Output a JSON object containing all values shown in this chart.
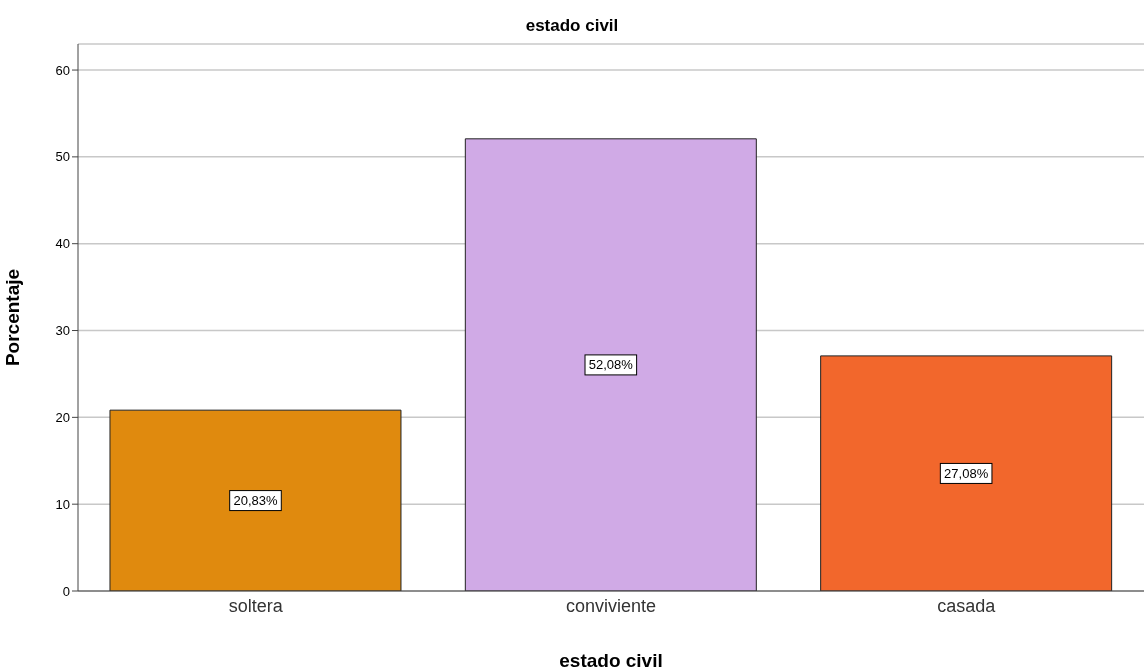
{
  "chart_data": {
    "type": "bar",
    "title": "estado civil",
    "xlabel": "estado civil",
    "ylabel": "Porcentaje",
    "categories": [
      "soltera",
      "conviviente",
      "casada"
    ],
    "values": [
      20.83,
      52.08,
      27.08
    ],
    "colors": [
      "#e08a0e",
      "#d0aae6",
      "#f2672c"
    ],
    "value_labels": [
      "20,83%",
      "52,08%",
      "27,08%"
    ],
    "ylim": [
      0,
      63
    ],
    "yticks": [
      0,
      10,
      20,
      30,
      40,
      50,
      60
    ],
    "grid": "y"
  }
}
